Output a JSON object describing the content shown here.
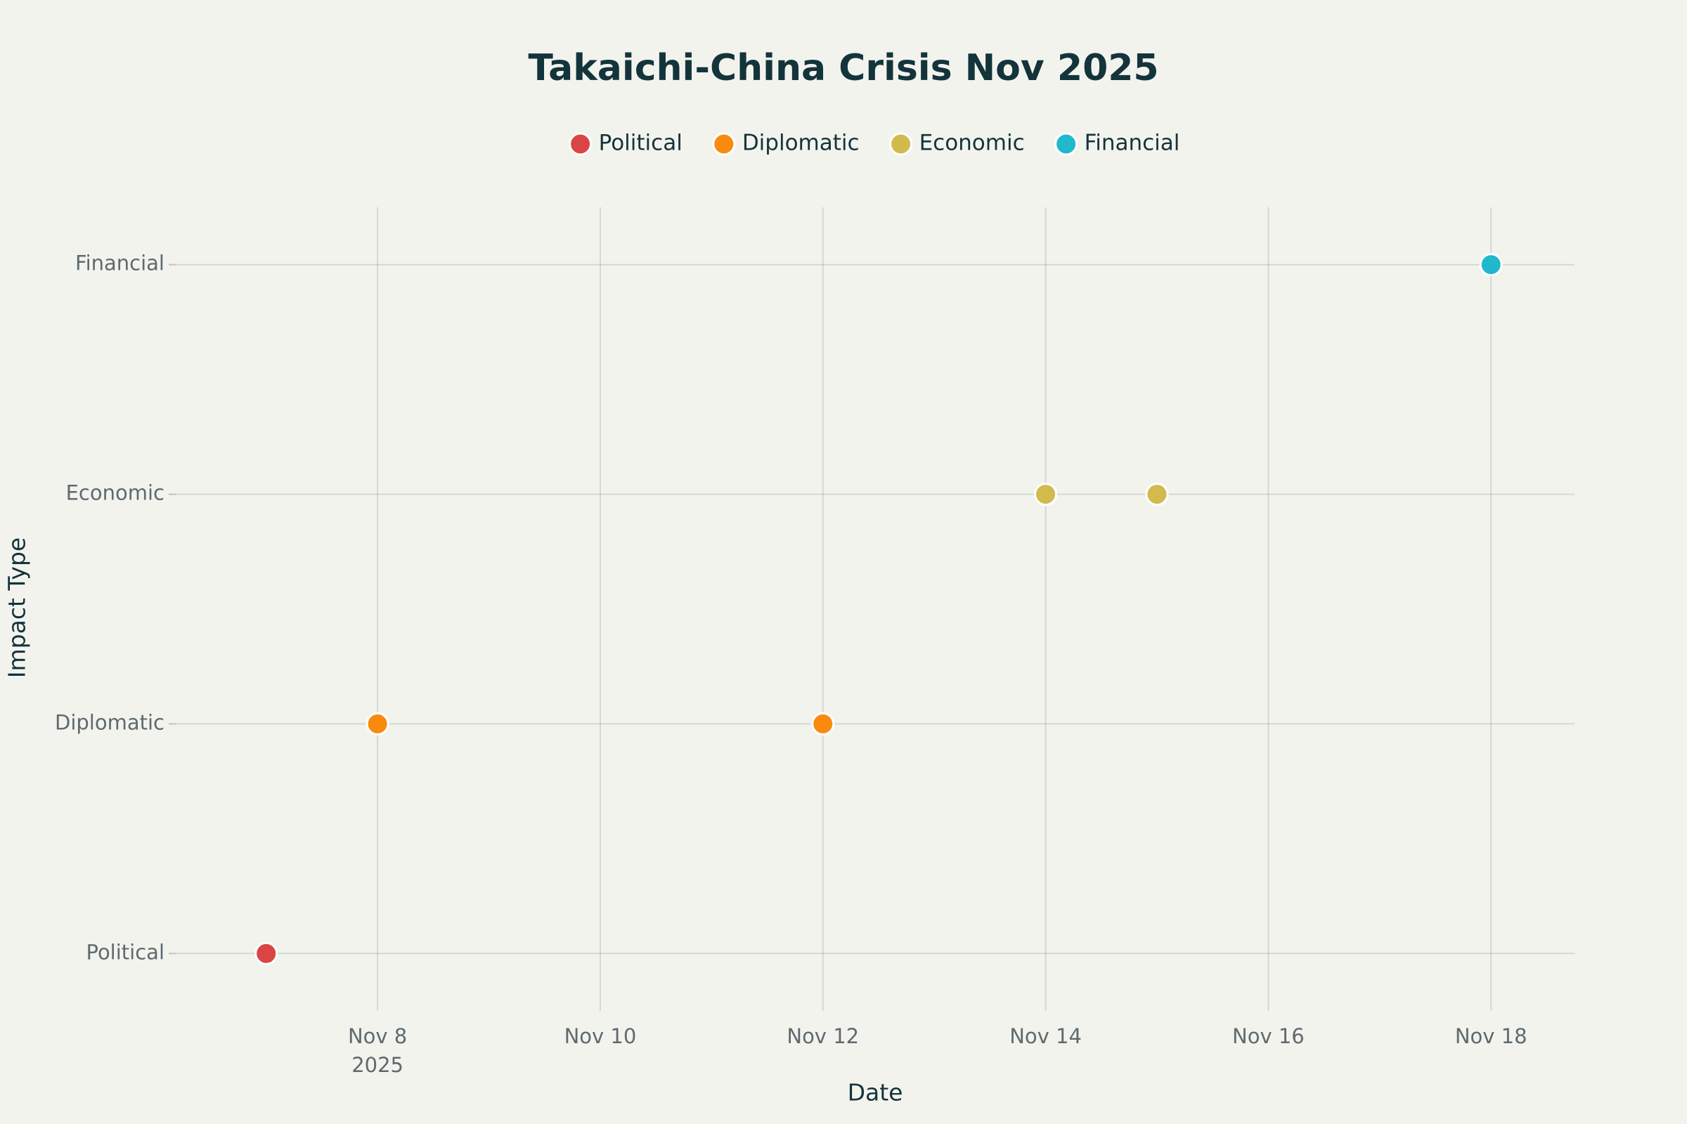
{
  "chart_data": {
    "type": "scatter",
    "title": "Takaichi-China Crisis Nov 2025",
    "x_label": "Date",
    "y_label": "Impact Type",
    "categories": [
      "Political",
      "Diplomatic",
      "Economic",
      "Financial"
    ],
    "series": [
      {
        "name": "Political",
        "color": "#DB4545",
        "x": [
          "2025-11-07"
        ],
        "y": [
          "Political"
        ]
      },
      {
        "name": "Diplomatic",
        "color": "#F98A0E",
        "x": [
          "2025-11-08",
          "2025-11-12"
        ],
        "y": [
          "Diplomatic",
          "Diplomatic"
        ]
      },
      {
        "name": "Economic",
        "color": "#D2BA4C",
        "x": [
          "2025-11-14",
          "2025-11-15"
        ],
        "y": [
          "Economic",
          "Economic"
        ]
      },
      {
        "name": "Financial",
        "color": "#1FB8CD",
        "x": [
          "2025-11-18"
        ],
        "y": [
          "Financial"
        ]
      }
    ],
    "xlim": [
      "2025-11-06T04:30Z",
      "2025-11-18T18:00Z"
    ],
    "xticks": [
      {
        "value": "2025-11-08",
        "label": "Nov 8"
      },
      {
        "value": "2025-11-10",
        "label": "Nov 10"
      },
      {
        "value": "2025-11-12",
        "label": "Nov 12"
      },
      {
        "value": "2025-11-14",
        "label": "Nov 14"
      },
      {
        "value": "2025-11-16",
        "label": "Nov 16"
      },
      {
        "value": "2025-11-18",
        "label": "Nov 18"
      }
    ],
    "x_year_label": "2025",
    "ylim": [
      -0.25,
      3.25
    ],
    "grid": true,
    "legend": "top"
  }
}
